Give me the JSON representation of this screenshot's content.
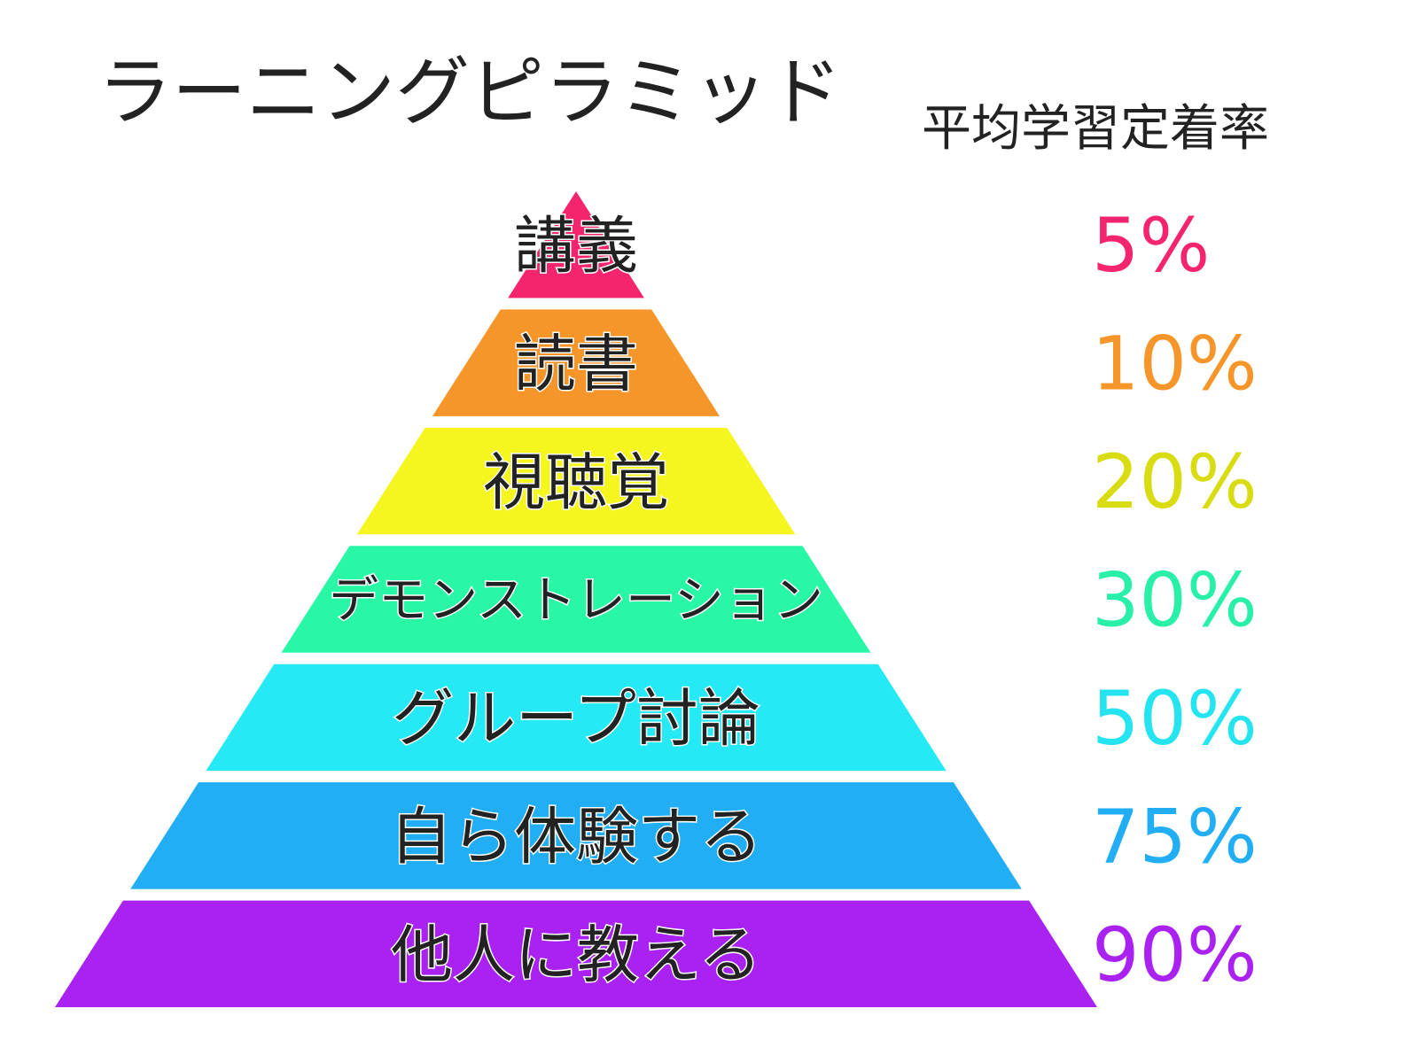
{
  "title": "ラーニングピラミッド",
  "rate_heading": "平均学習定着率",
  "tiers": [
    {
      "label": "講義",
      "rate": "5%",
      "value": 5,
      "color": "#f5246e",
      "text_color": "#f5246e"
    },
    {
      "label": "読書",
      "rate": "10%",
      "value": 10,
      "color": "#f6962a",
      "text_color": "#f6962a"
    },
    {
      "label": "視聴覚",
      "rate": "20%",
      "value": 20,
      "color": "#f5f520",
      "text_color": "#d9dc10"
    },
    {
      "label": "デモンストレーション",
      "rate": "30%",
      "value": 30,
      "color": "#28f7a5",
      "text_color": "#28f0a8"
    },
    {
      "label": "グループ討論",
      "rate": "50%",
      "value": 50,
      "color": "#25e9f4",
      "text_color": "#25e4f2"
    },
    {
      "label": "自ら体験する",
      "rate": "75%",
      "value": 75,
      "color": "#22aef4",
      "text_color": "#22aef4"
    },
    {
      "label": "他人に教える",
      "rate": "90%",
      "value": 90,
      "color": "#a922f2",
      "text_color": "#a922f2"
    }
  ]
}
